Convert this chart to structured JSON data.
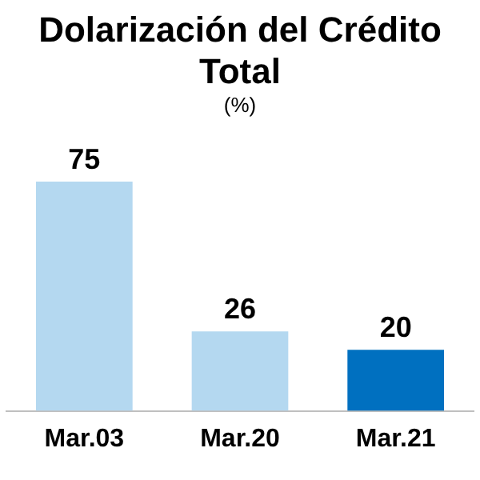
{
  "chart_data": {
    "type": "bar",
    "title": "Dolarización del Crédito Total",
    "subtitle": "(%)",
    "categories": [
      "Mar.03",
      "Mar.20",
      "Mar.21"
    ],
    "values": [
      75,
      26,
      20
    ],
    "colors": [
      "#b4d8f0",
      "#b4d8f0",
      "#0070c0"
    ],
    "data_labels": true,
    "grid": false,
    "legend": false
  }
}
